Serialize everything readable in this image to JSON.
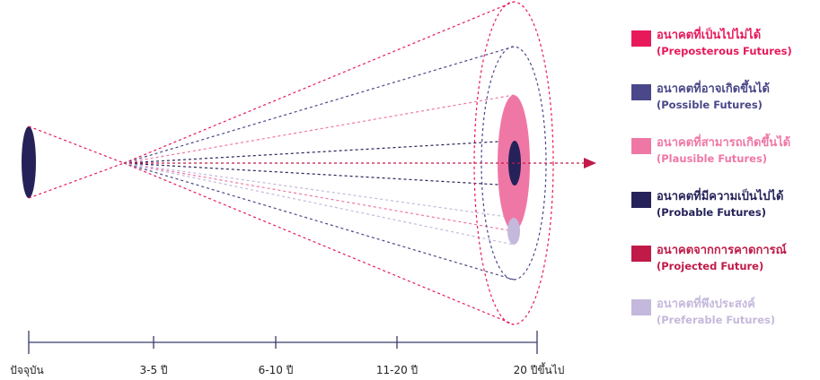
{
  "legend": [
    {
      "thai": "อนาคตที่เป็นไปไม่ได้",
      "english": "(Preposterous Futures)",
      "color": "#e8195a"
    },
    {
      "thai": "อนาคตที่อาจเกิดขึ้นได้",
      "english": "(Possible Futures)",
      "color": "#4a4888"
    },
    {
      "thai": "อนาคตที่สามารถเกิดขึ้นได้",
      "english": "(Plausible Futures)",
      "color": "#ef77a5"
    },
    {
      "thai": "อนาคตที่มีความเป็นไปได้",
      "english": "(Probable Futures)",
      "color": "#252259"
    },
    {
      "thai": "อนาคตจากการคาดการณ์",
      "english": "(Projected Future)",
      "color": "#c01a48"
    },
    {
      "thai": "อนาคตที่พึงประสงค์",
      "english": "(Preferable Futures)",
      "color": "#c4b9dc"
    }
  ],
  "timeline": {
    "ticks": [
      "ปัจจุบัน",
      "3-5 ปี",
      "6-10 ปี",
      "11-20 ปี",
      "20 ปีขึ้นไป"
    ]
  }
}
